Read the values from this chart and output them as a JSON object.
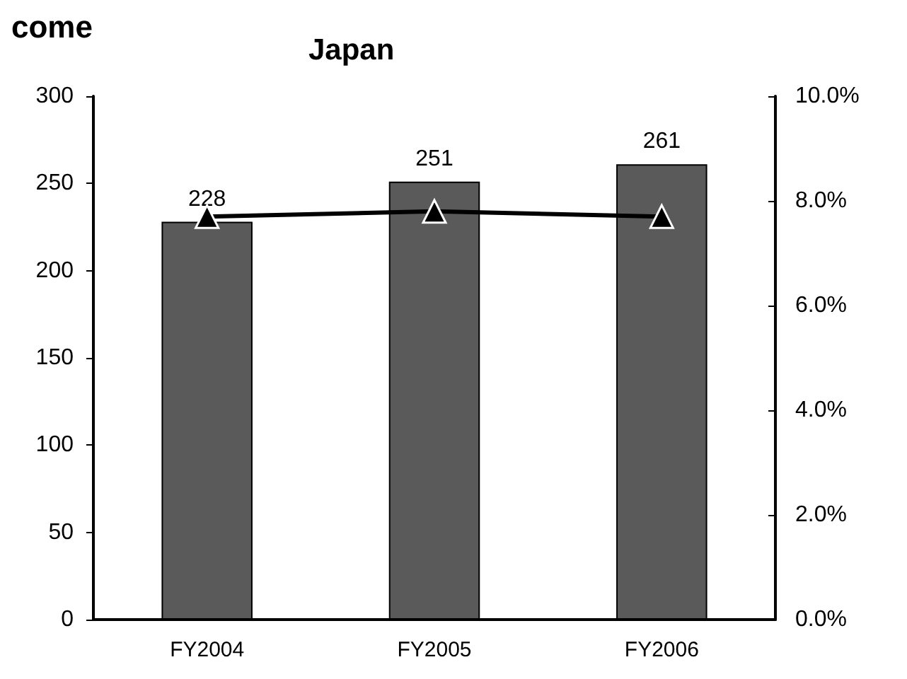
{
  "chart_data": {
    "type": "bar",
    "title": "Japan",
    "annotations": [
      "come"
    ],
    "categories": [
      "FY2004",
      "FY2005",
      "FY2006"
    ],
    "series": [
      {
        "color": "#5a5a5a",
        "values": [
          228,
          251,
          261
        ],
        "data_labels": true
      },
      {
        "type": "line",
        "color": "#000000",
        "axis": "y2",
        "values": [
          7.7,
          7.8,
          7.7
        ],
        "marker": "triangle"
      }
    ],
    "ylim": [
      0,
      300
    ],
    "yticks": [
      0,
      50,
      100,
      150,
      200,
      250,
      300
    ],
    "y2lim": [
      0,
      10
    ],
    "y2ticks": [
      {
        "value": 0,
        "label": "0.0%"
      },
      {
        "value": 2,
        "label": "2.0%"
      },
      {
        "value": 4,
        "label": "4.0%"
      },
      {
        "value": 6,
        "label": "6.0%"
      },
      {
        "value": 8,
        "label": "8.0%"
      },
      {
        "value": 10,
        "label": "10.0%"
      }
    ],
    "grid": false
  }
}
